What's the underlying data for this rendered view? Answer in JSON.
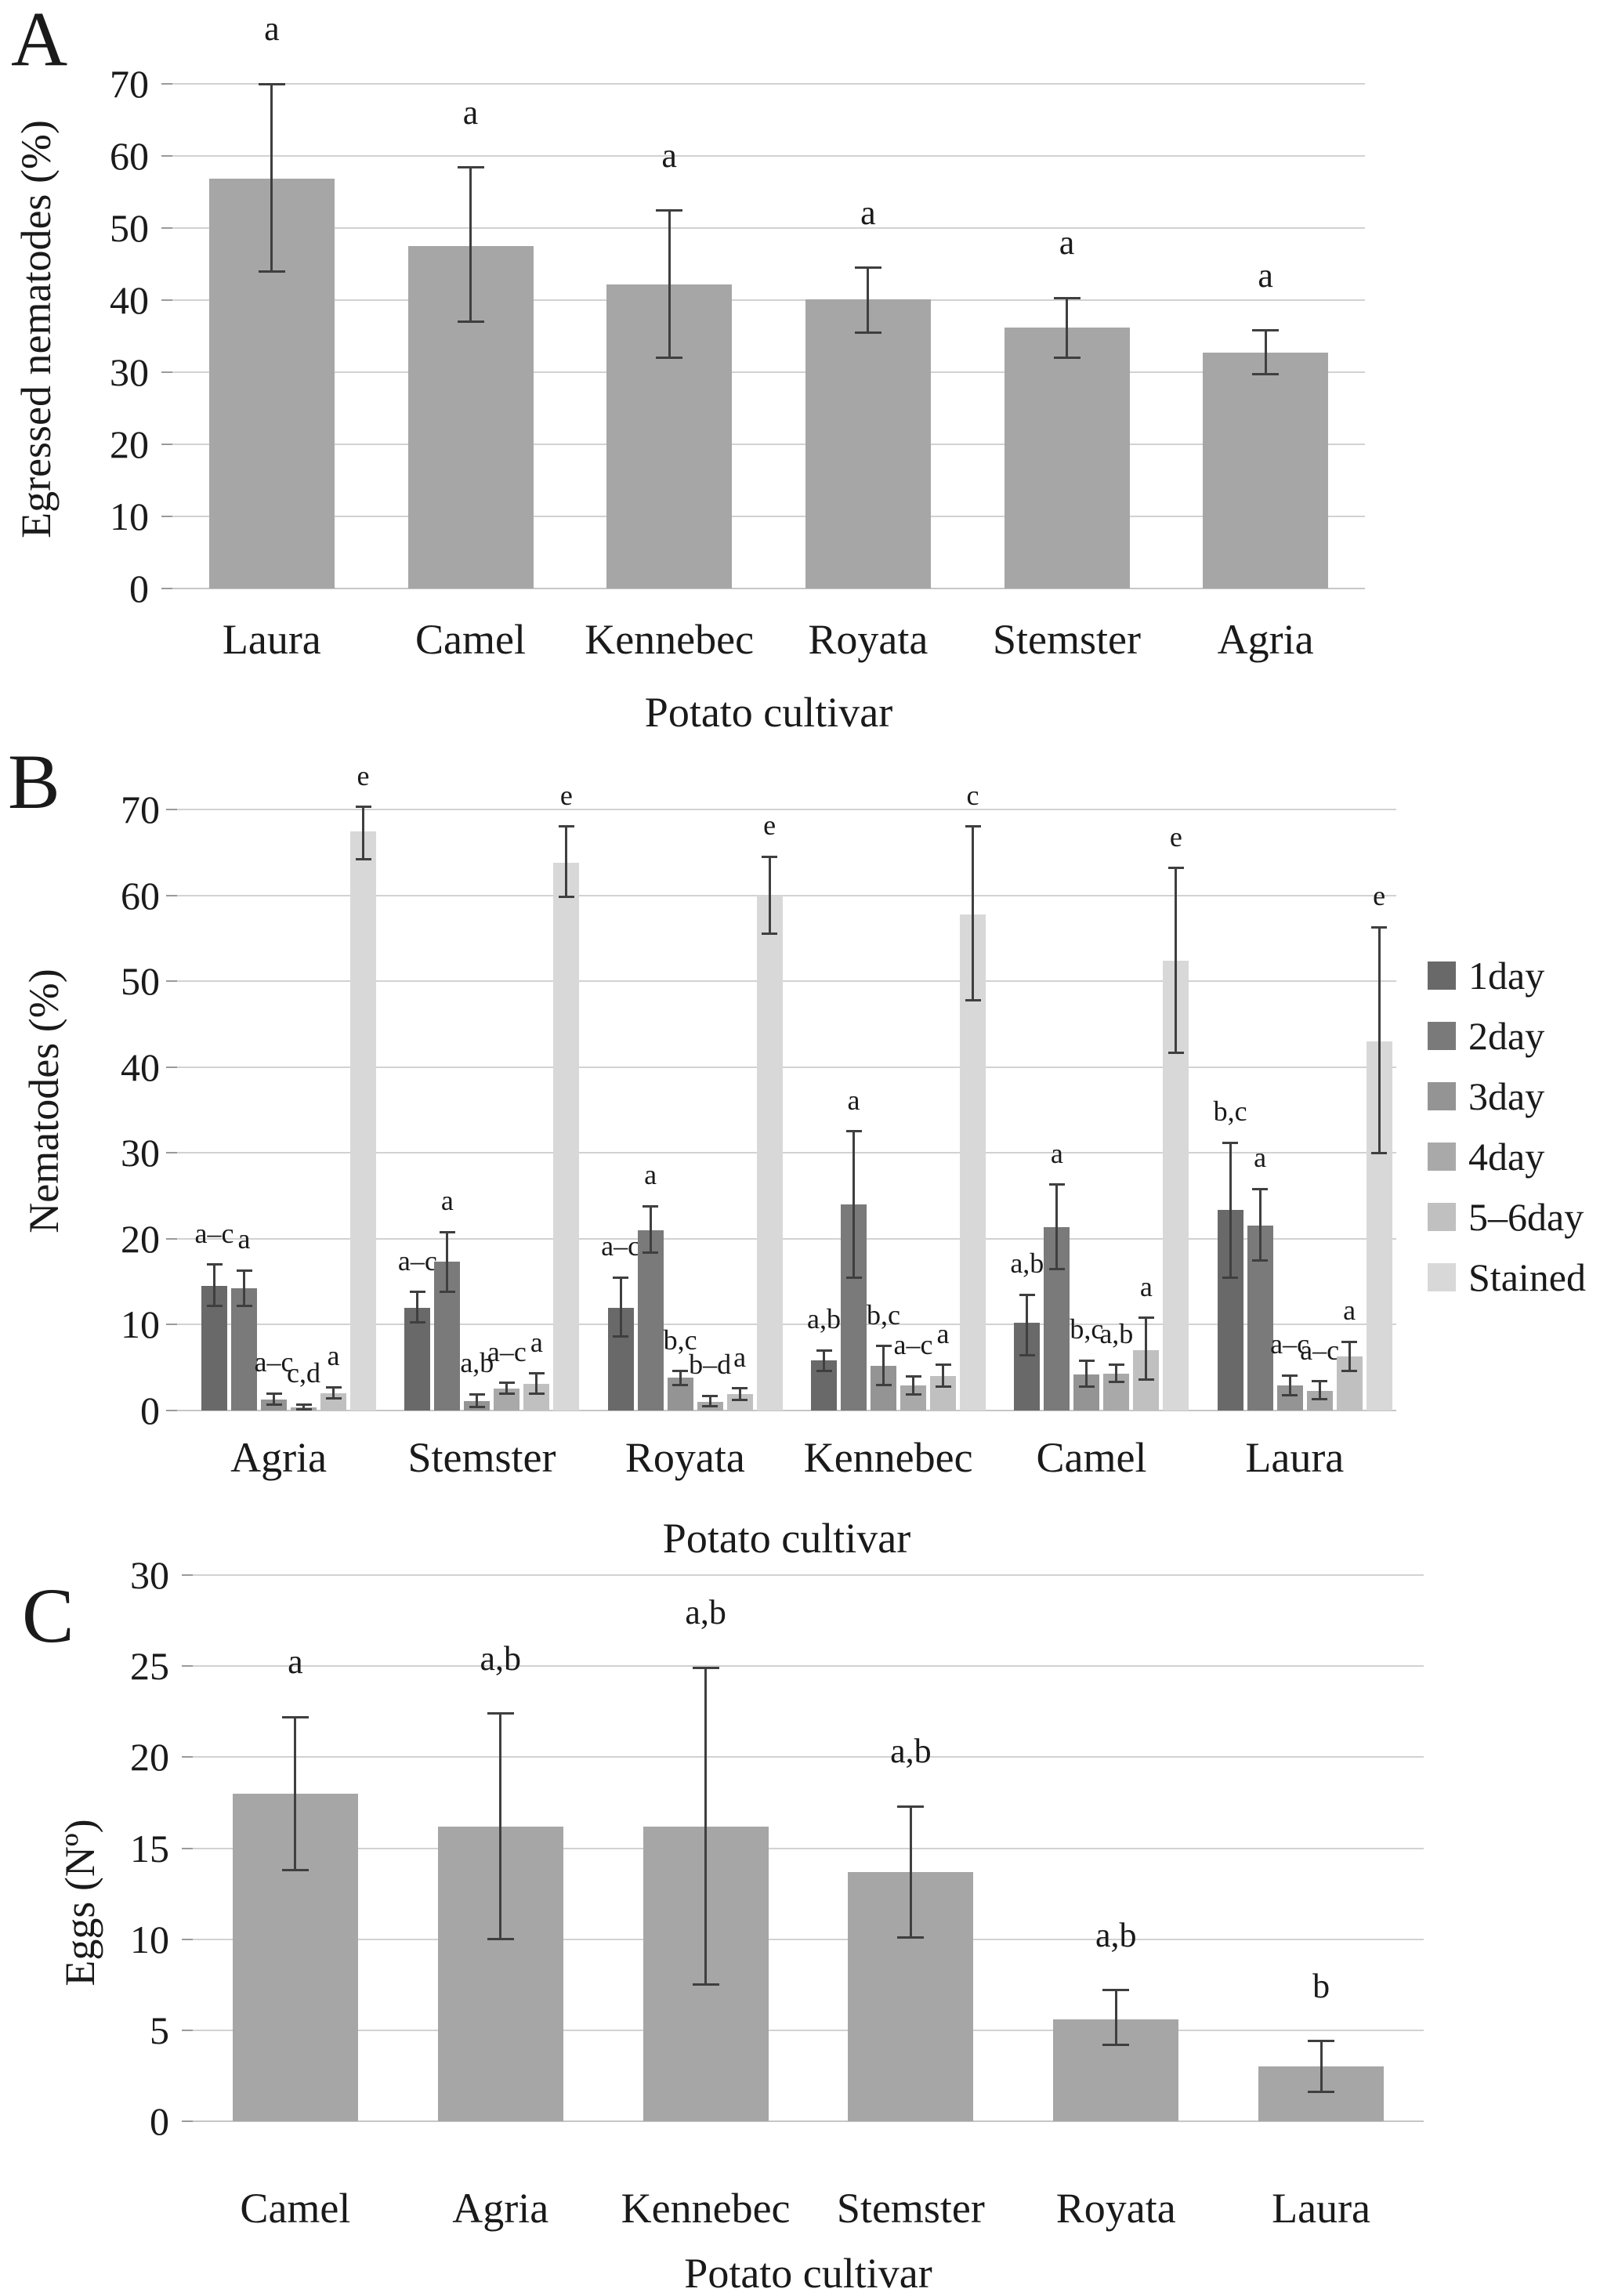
{
  "panel_labels": [
    "A",
    "B",
    "C"
  ],
  "colors": {
    "single_bar": "#a6a6a6",
    "error_bar": "#3f3f3f",
    "gridline": "#d2d2d2",
    "series": [
      "#696969",
      "#7a7a7a",
      "#949494",
      "#a9a9a9",
      "#c0c0c0",
      "#d8d8d8"
    ]
  },
  "chart_data": [
    {
      "panel": "A",
      "type": "bar",
      "xlabel": "Potato cultivar",
      "ylabel": "Egressed nematodes (%)",
      "ylim": [
        0,
        70
      ],
      "ystep": 10,
      "yticks": [
        0,
        10,
        20,
        30,
        40,
        50,
        60,
        70
      ],
      "grid": true,
      "legend_position": "none",
      "bar_color": "#a6a6a6",
      "categories": [
        "Laura",
        "Camel",
        "Kennebec",
        "Royata",
        "Stemster",
        "Agria"
      ],
      "values": [
        56.8,
        47.5,
        42.2,
        40.1,
        36.2,
        32.7
      ],
      "error_low": [
        44.0,
        37.0,
        32.0,
        35.5,
        32.0,
        29.7
      ],
      "error_high": [
        70.0,
        58.4,
        52.4,
        44.5,
        40.3,
        35.8
      ],
      "sig_letters": [
        "a",
        "a",
        "a",
        "a",
        "a",
        "a"
      ]
    },
    {
      "panel": "B",
      "type": "grouped-bar",
      "xlabel": "Potato cultivar",
      "ylabel": "Nematodes (%)",
      "ylim": [
        0,
        70
      ],
      "ystep": 10,
      "yticks": [
        0,
        10,
        20,
        30,
        40,
        50,
        60,
        70
      ],
      "grid": true,
      "legend_position": "right",
      "categories": [
        "Agria",
        "Stemster",
        "Royata",
        "Kennebec",
        "Camel",
        "Laura"
      ],
      "series": [
        {
          "name": "1day",
          "color": "#696969",
          "values": [
            14.5,
            12.0,
            12.0,
            5.8,
            10.2,
            23.4
          ],
          "error_low": [
            12.2,
            10.3,
            8.6,
            4.6,
            6.4,
            15.5
          ],
          "error_high": [
            17.0,
            13.8,
            15.5,
            7.0,
            13.5,
            31.2
          ],
          "sig_letters": [
            "a–c",
            "a–c",
            "a–c",
            "a,b",
            "a,b",
            "b,c"
          ]
        },
        {
          "name": "2day",
          "color": "#7a7a7a",
          "values": [
            14.2,
            17.3,
            21.0,
            24.0,
            21.4,
            21.5
          ],
          "error_low": [
            12.2,
            13.8,
            18.4,
            15.5,
            16.5,
            17.5
          ],
          "error_high": [
            16.3,
            20.8,
            23.8,
            32.5,
            26.3,
            25.8
          ],
          "sig_letters": [
            "a",
            "a",
            "a",
            "a",
            "a",
            "a"
          ]
        },
        {
          "name": "3day",
          "color": "#949494",
          "values": [
            1.3,
            1.1,
            3.8,
            5.2,
            4.2,
            2.9
          ],
          "error_low": [
            0.7,
            0.4,
            3.0,
            3.0,
            2.8,
            1.8
          ],
          "error_high": [
            2.0,
            1.9,
            4.6,
            7.5,
            5.8,
            4.1
          ],
          "sig_letters": [
            "a–c",
            "a,b",
            "b,c",
            "b,c",
            "b,c",
            "a–c"
          ]
        },
        {
          "name": "4day",
          "color": "#a9a9a9",
          "values": [
            0.4,
            2.6,
            1.0,
            2.9,
            4.3,
            2.3
          ],
          "error_low": [
            0.1,
            2.0,
            0.5,
            1.9,
            3.3,
            1.3
          ],
          "error_high": [
            0.7,
            3.2,
            1.7,
            4.0,
            5.3,
            3.4
          ],
          "sig_letters": [
            "c,d",
            "a–c",
            "b–d",
            "a–c",
            "a,b",
            "a–c"
          ]
        },
        {
          "name": "5–6day",
          "color": "#c0c0c0",
          "values": [
            2.0,
            3.1,
            1.9,
            4.0,
            7.0,
            6.3
          ],
          "error_low": [
            1.4,
            2.0,
            1.2,
            2.8,
            3.6,
            4.6
          ],
          "error_high": [
            2.7,
            4.3,
            2.6,
            5.3,
            10.8,
            8.0
          ],
          "sig_letters": [
            "a",
            "a",
            "a",
            "a",
            "a",
            "a"
          ]
        },
        {
          "name": "Stained",
          "color": "#d8d8d8",
          "values": [
            67.4,
            63.8,
            60.0,
            57.8,
            52.4,
            43.0
          ],
          "error_low": [
            64.2,
            59.8,
            55.5,
            47.8,
            41.7,
            30.0
          ],
          "error_high": [
            70.3,
            68.0,
            64.5,
            68.0,
            63.2,
            56.3
          ],
          "sig_letters": [
            "e",
            "e",
            "e",
            "c",
            "e",
            "e"
          ]
        }
      ]
    },
    {
      "panel": "C",
      "type": "bar",
      "xlabel": "Potato cultivar",
      "ylabel": "Eggs (Nº)",
      "ylim": [
        0,
        30
      ],
      "ystep": 5,
      "yticks": [
        0,
        5,
        10,
        15,
        20,
        25,
        30
      ],
      "grid": true,
      "legend_position": "none",
      "bar_color": "#a6a6a6",
      "categories": [
        "Camel",
        "Agria",
        "Kennebec",
        "Stemster",
        "Royata",
        "Laura"
      ],
      "values": [
        18.0,
        16.2,
        16.2,
        13.7,
        5.6,
        3.0
      ],
      "error_low": [
        13.8,
        10.0,
        7.5,
        10.1,
        4.2,
        1.6
      ],
      "error_high": [
        22.2,
        22.4,
        24.9,
        17.3,
        7.2,
        4.4
      ],
      "sig_letters": [
        "a",
        "a,b",
        "a,b",
        "a,b",
        "a,b",
        "b"
      ]
    }
  ]
}
